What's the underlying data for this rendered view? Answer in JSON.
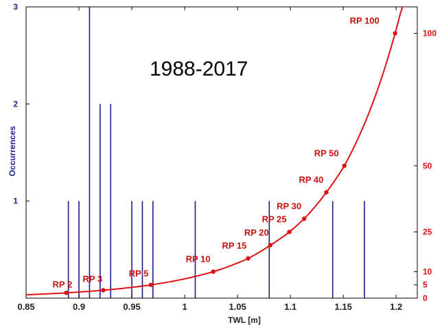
{
  "chart_data": {
    "type": "bar",
    "annotation": "1988-2017",
    "xlabel": "TWL [m]",
    "ylabel_left": "Occurrences",
    "xlim": [
      0.85,
      1.22
    ],
    "ylim_left": [
      0,
      3
    ],
    "ylim_right": [
      0,
      110
    ],
    "xticks": [
      0.85,
      0.9,
      0.95,
      1,
      1.05,
      1.1,
      1.15,
      1.2
    ],
    "xtick_labels": [
      "0.85",
      "0.9",
      "0.95",
      "1",
      "1.05",
      "1.1",
      "1.15",
      "1.2"
    ],
    "yticks_left": [
      1,
      2,
      3
    ],
    "ytick_labels_left": [
      "1",
      "2",
      "3"
    ],
    "yticks_right": [
      0,
      5,
      10,
      25,
      50,
      100
    ],
    "ytick_labels_right": [
      "0",
      "5",
      "10",
      "25",
      "50",
      "100"
    ],
    "colors": {
      "bars": "#1a1a8f",
      "curve": "#dd1111",
      "left_axis": "#1f1f8f",
      "right_axis": "#e01010"
    },
    "occurrences": {
      "x": [
        0.89,
        0.9,
        0.91,
        0.92,
        0.93,
        0.95,
        0.96,
        0.97,
        1.01,
        1.08,
        1.14,
        1.17
      ],
      "values": [
        1,
        1,
        3,
        2,
        2,
        1,
        1,
        1,
        1,
        1,
        1,
        1
      ]
    },
    "return_period_curve": {
      "points": [
        {
          "label": "RP 2",
          "x": 0.888,
          "y": 2
        },
        {
          "label": "RP 3",
          "x": 0.923,
          "y": 3
        },
        {
          "label": "RP 5",
          "x": 0.968,
          "y": 5
        },
        {
          "label": "RP 10",
          "x": 1.027,
          "y": 10
        },
        {
          "label": "RP 15",
          "x": 1.06,
          "y": 15
        },
        {
          "label": "RP 20",
          "x": 1.081,
          "y": 20
        },
        {
          "label": "RP 25",
          "x": 1.099,
          "y": 25
        },
        {
          "label": "RP 30",
          "x": 1.113,
          "y": 30
        },
        {
          "label": "RP 40",
          "x": 1.134,
          "y": 40
        },
        {
          "label": "RP 50",
          "x": 1.151,
          "y": 50
        },
        {
          "label": "RP 100",
          "x": 1.199,
          "y": 100
        }
      ],
      "curve_x": [
        0.85,
        0.87,
        0.888,
        0.923,
        0.968,
        1.0,
        1.027,
        1.06,
        1.081,
        1.099,
        1.113,
        1.134,
        1.151,
        1.17,
        1.199,
        1.21
      ]
    }
  }
}
